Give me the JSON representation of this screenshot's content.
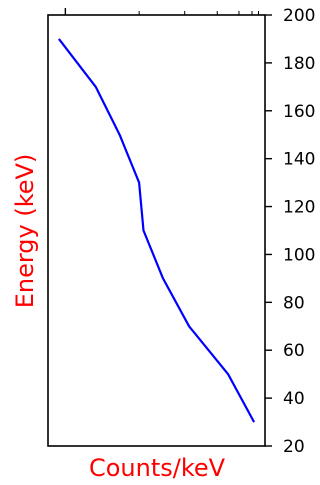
{
  "chart_data": {
    "type": "line",
    "orientation": "vertical-energy-axis",
    "xlabel": "Counts/keV",
    "ylabel": "Energy (keV)",
    "label_color": "#ff0000",
    "line_color": "#0000ff",
    "ylim": [
      20,
      200
    ],
    "y_ticks": [
      20,
      40,
      60,
      80,
      100,
      120,
      140,
      160,
      180,
      200
    ],
    "y_axis_side": "right",
    "x_tick_labels_visible": false,
    "grid": false,
    "series": [
      {
        "x": [
          0.05,
          0.22,
          0.33,
          0.42,
          0.44,
          0.53,
          0.65,
          0.83,
          0.95
        ],
        "y": [
          190,
          170,
          150,
          130,
          110,
          90,
          70,
          50,
          30
        ]
      }
    ]
  }
}
